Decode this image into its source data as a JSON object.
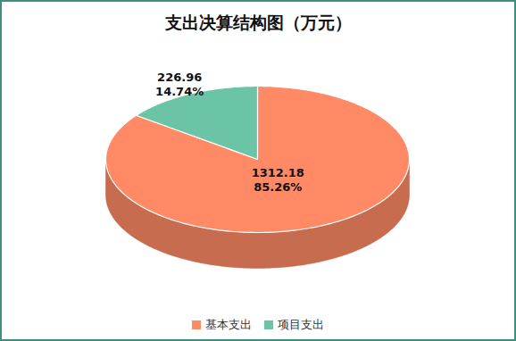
{
  "chart_data": {
    "type": "pie",
    "title": "支出决算结构图（万元）",
    "categories": [
      "基本支出",
      "项目支出"
    ],
    "values": [
      1312.18,
      226.96
    ],
    "percents": [
      85.26,
      14.74
    ],
    "percent_labels": [
      "85.26%",
      "14.74%"
    ],
    "colors": [
      "#ff8a65",
      "#6cc4a6"
    ],
    "data_labels": true,
    "legend": "bottom"
  }
}
